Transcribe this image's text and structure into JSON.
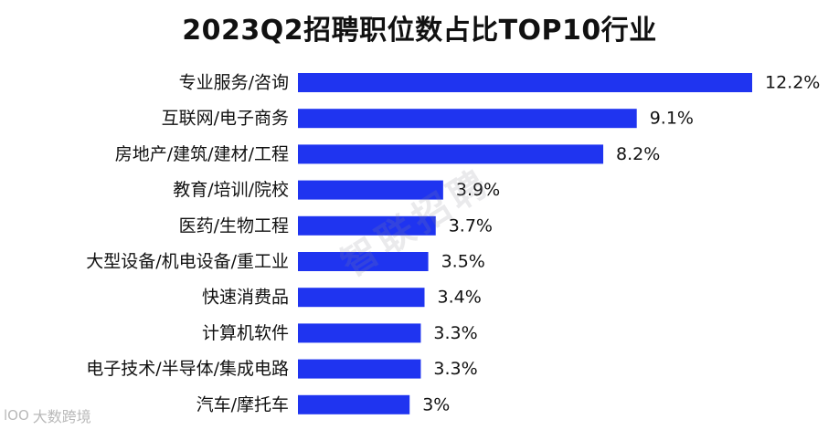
{
  "chart_data": {
    "type": "bar",
    "orientation": "horizontal",
    "title": "2023Q2招聘职位数占比TOP10行业",
    "categories": [
      "专业服务/咨询",
      "互联网/电子商务",
      "房地产/建筑/建材/工程",
      "教育/培训/院校",
      "医药/生物工程",
      "大型设备/机电设备/重工业",
      "快速消费品",
      "计算机软件",
      "电子技术/半导体/集成电路",
      "汽车/摩托车"
    ],
    "values": [
      12.2,
      9.1,
      8.2,
      3.9,
      3.7,
      3.5,
      3.4,
      3.3,
      3.3,
      3.0
    ],
    "labels": [
      "12.2%",
      "9.1%",
      "8.2%",
      "3.9%",
      "3.7%",
      "3.5%",
      "3.4%",
      "3.3%",
      "3.3%",
      "3%"
    ],
    "xlim": [
      0,
      12.2
    ],
    "bar_color": "#1f34f0",
    "grid": false,
    "legend": "none"
  },
  "watermark": "智联招聘",
  "logo": {
    "mark": "lOO",
    "text": "大数跨境"
  }
}
